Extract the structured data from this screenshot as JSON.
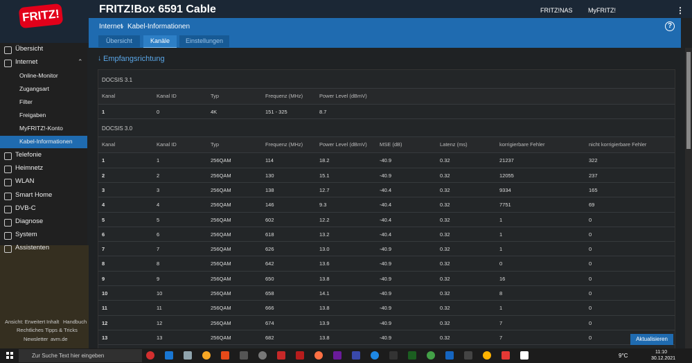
{
  "header": {
    "logo": "FRITZ!",
    "title": "FRITZ!Box 6591 Cable",
    "links": [
      "FRITZ!NAS",
      "MyFRITZ!"
    ]
  },
  "breadcrumb": [
    "Internet",
    "Kabel-Informationen"
  ],
  "tabs": [
    "Übersicht",
    "Kanäle",
    "Einstellungen"
  ],
  "sidebar": {
    "items": [
      "Übersicht",
      "Internet",
      "Online-Monitor",
      "Zugangsart",
      "Filter",
      "Freigaben",
      "MyFRITZ!-Konto",
      "Kabel-Informationen",
      "Telefonie",
      "Heimnetz",
      "WLAN",
      "Smart Home",
      "DVB-C",
      "Diagnose",
      "System",
      "Assistenten"
    ],
    "footer": [
      "Ansicht: Erweitert",
      "Inhalt",
      "Handbuch",
      "Rechtliches",
      "Tipps & Tricks",
      "Newsletter",
      "avm.de"
    ]
  },
  "section": "Empfangsrichtung",
  "docsis31": {
    "title": "DOCSIS 3.1",
    "headers": [
      "Kanal",
      "Kanal ID",
      "Typ",
      "Frequenz (MHz)",
      "Power Level (dBmV)"
    ],
    "rows": [
      [
        "1",
        "0",
        "4K",
        "151 - 325",
        "8.7"
      ]
    ]
  },
  "docsis30": {
    "title": "DOCSIS 3.0",
    "headers": [
      "Kanal",
      "Kanal ID",
      "Typ",
      "Frequenz (MHz)",
      "Power Level (dBmV)",
      "MSE (dB)",
      "Latenz (ms)",
      "korrigierbare Fehler",
      "nicht korrigierbare Fehler"
    ],
    "rows": [
      [
        "1",
        "1",
        "256QAM",
        "114",
        "18.2",
        "-40.9",
        "0.32",
        "21237",
        "322"
      ],
      [
        "2",
        "2",
        "256QAM",
        "130",
        "15.1",
        "-40.9",
        "0.32",
        "12055",
        "237"
      ],
      [
        "3",
        "3",
        "256QAM",
        "138",
        "12.7",
        "-40.4",
        "0.32",
        "9334",
        "165"
      ],
      [
        "4",
        "4",
        "256QAM",
        "146",
        "9.3",
        "-40.4",
        "0.32",
        "7751",
        "69"
      ],
      [
        "5",
        "5",
        "256QAM",
        "602",
        "12.2",
        "-40.4",
        "0.32",
        "1",
        "0"
      ],
      [
        "6",
        "6",
        "256QAM",
        "618",
        "13.2",
        "-40.4",
        "0.32",
        "1",
        "0"
      ],
      [
        "7",
        "7",
        "256QAM",
        "626",
        "13.0",
        "-40.9",
        "0.32",
        "1",
        "0"
      ],
      [
        "8",
        "8",
        "256QAM",
        "642",
        "13.6",
        "-40.9",
        "0.32",
        "0",
        "0"
      ],
      [
        "9",
        "9",
        "256QAM",
        "650",
        "13.8",
        "-40.9",
        "0.32",
        "16",
        "0"
      ],
      [
        "10",
        "10",
        "256QAM",
        "658",
        "14.1",
        "-40.9",
        "0.32",
        "8",
        "0"
      ],
      [
        "11",
        "11",
        "256QAM",
        "666",
        "13.8",
        "-40.9",
        "0.32",
        "1",
        "0"
      ],
      [
        "12",
        "12",
        "256QAM",
        "674",
        "13.9",
        "-40.9",
        "0.32",
        "7",
        "0"
      ],
      [
        "13",
        "13",
        "256QAM",
        "682",
        "13.8",
        "-40.9",
        "0.32",
        "7",
        "0"
      ]
    ]
  },
  "button": "Aktualisieren",
  "taskbar": {
    "search": "Zur Suche Text hier eingeben",
    "weather": "9°C",
    "time": "11:10",
    "date": "30.12.2021"
  }
}
